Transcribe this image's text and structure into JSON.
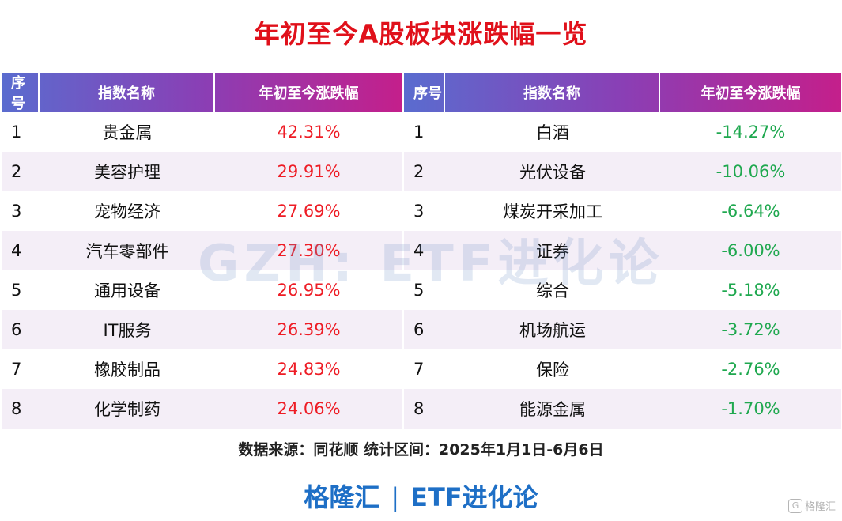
{
  "title": "年初至今A股板块涨跌幅一览",
  "headers": {
    "index": "序号",
    "name": "指数名称",
    "change": "年初至今涨跌幅"
  },
  "gainers": [
    {
      "rank": "1",
      "name": "贵金属",
      "change": "42.31%"
    },
    {
      "rank": "2",
      "name": "美容护理",
      "change": "29.91%"
    },
    {
      "rank": "3",
      "name": "宠物经济",
      "change": "27.69%"
    },
    {
      "rank": "4",
      "name": "汽车零部件",
      "change": "27.30%"
    },
    {
      "rank": "5",
      "name": "通用设备",
      "change": "26.95%"
    },
    {
      "rank": "6",
      "name": "IT服务",
      "change": "26.39%"
    },
    {
      "rank": "7",
      "name": "橡胶制品",
      "change": "24.83%"
    },
    {
      "rank": "8",
      "name": "化学制药",
      "change": "24.06%"
    }
  ],
  "losers": [
    {
      "rank": "1",
      "name": "白酒",
      "change": "-14.27%"
    },
    {
      "rank": "2",
      "name": "光伏设备",
      "change": "-10.06%"
    },
    {
      "rank": "3",
      "name": "煤炭开采加工",
      "change": "-6.64%"
    },
    {
      "rank": "4",
      "name": "证券",
      "change": "-6.00%"
    },
    {
      "rank": "5",
      "name": "综合",
      "change": "-5.18%"
    },
    {
      "rank": "6",
      "name": "机场航运",
      "change": "-3.72%"
    },
    {
      "rank": "7",
      "name": "保险",
      "change": "-2.76%"
    },
    {
      "rank": "8",
      "name": "能源金属",
      "change": "-1.70%"
    }
  ],
  "watermark": "GZH: ETF进化论",
  "source": "数据来源：同花顺 统计区间：2025年1月1日-6月6日",
  "footer": {
    "brand": "格隆汇",
    "separator": "|",
    "channel": "ETF进化论"
  },
  "corner_logo": {
    "icon": "G",
    "text": "格隆汇"
  },
  "colors": {
    "title": "#e0101a",
    "positive": "#ee1c25",
    "negative": "#1fa84f",
    "header_gradient_start": "#5a6ccf",
    "header_gradient_end": "#c41f8b",
    "row_alt": "#f4eef7",
    "footer": "#1e6fc6"
  }
}
